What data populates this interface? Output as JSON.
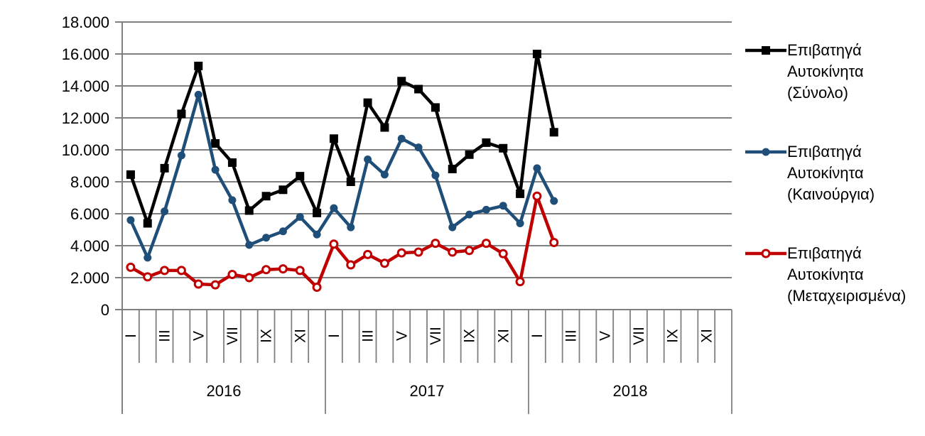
{
  "chart_data": {
    "type": "line",
    "title": "",
    "legend_position": "right",
    "grid": true,
    "gridline_color": "#808080",
    "text_color": "#000000",
    "background_color": "#FFFFFF",
    "y_axis": {
      "min": 0,
      "max": 18000,
      "step": 2000,
      "tick_labels": [
        "18.000",
        "16.000",
        "14.000",
        "12.000",
        "10.000",
        "8.000",
        "6.000",
        "4.000",
        "2.000",
        "0"
      ]
    },
    "x_axis": {
      "years": [
        "2016",
        "2017",
        "2018"
      ],
      "months_per_year": 12,
      "month_tick_labels": [
        "I",
        "III",
        "V",
        "VII",
        "IX",
        "XI"
      ],
      "plotted_points": 26
    },
    "series": [
      {
        "name": "Επιβατηγά Αυτοκίνητα (Σύνολο)",
        "legend_lines": [
          "Επιβατηγά",
          "Αυτοκίνητα",
          "(Σύνολο)"
        ],
        "color": "#000000",
        "marker": "square",
        "values": [
          8450,
          5400,
          8850,
          12250,
          15250,
          10400,
          9200,
          6200,
          7100,
          7500,
          8350,
          6050,
          10700,
          8000,
          12950,
          11400,
          14300,
          13800,
          12650,
          8800,
          9700,
          10450,
          10100,
          7250,
          16000,
          11100
        ]
      },
      {
        "name": "Επιβατηγά Αυτοκίνητα (Καινούργια)",
        "legend_lines": [
          "Επιβατηγά",
          "Αυτοκίνητα",
          "(Καινούργια)"
        ],
        "color": "#1F4E79",
        "marker": "circle",
        "values": [
          5600,
          3250,
          6150,
          9650,
          13450,
          8750,
          6850,
          4050,
          4500,
          4900,
          5800,
          4700,
          6350,
          5150,
          9400,
          8450,
          10700,
          10150,
          8400,
          5150,
          5950,
          6250,
          6500,
          5400,
          8850,
          6800
        ]
      },
      {
        "name": "Επιβατηγά Αυτοκίνητα (Μεταχειρισμένα)",
        "legend_lines": [
          "Επιβατηγά",
          "Αυτοκίνητα",
          "(Μεταχειρισμένα)"
        ],
        "color": "#C00000",
        "marker": "open-circle",
        "values": [
          2650,
          2050,
          2450,
          2450,
          1600,
          1550,
          2200,
          2000,
          2500,
          2550,
          2450,
          1400,
          4100,
          2800,
          3450,
          2900,
          3550,
          3600,
          4150,
          3600,
          3700,
          4150,
          3500,
          1750,
          7100,
          4200
        ]
      }
    ]
  }
}
